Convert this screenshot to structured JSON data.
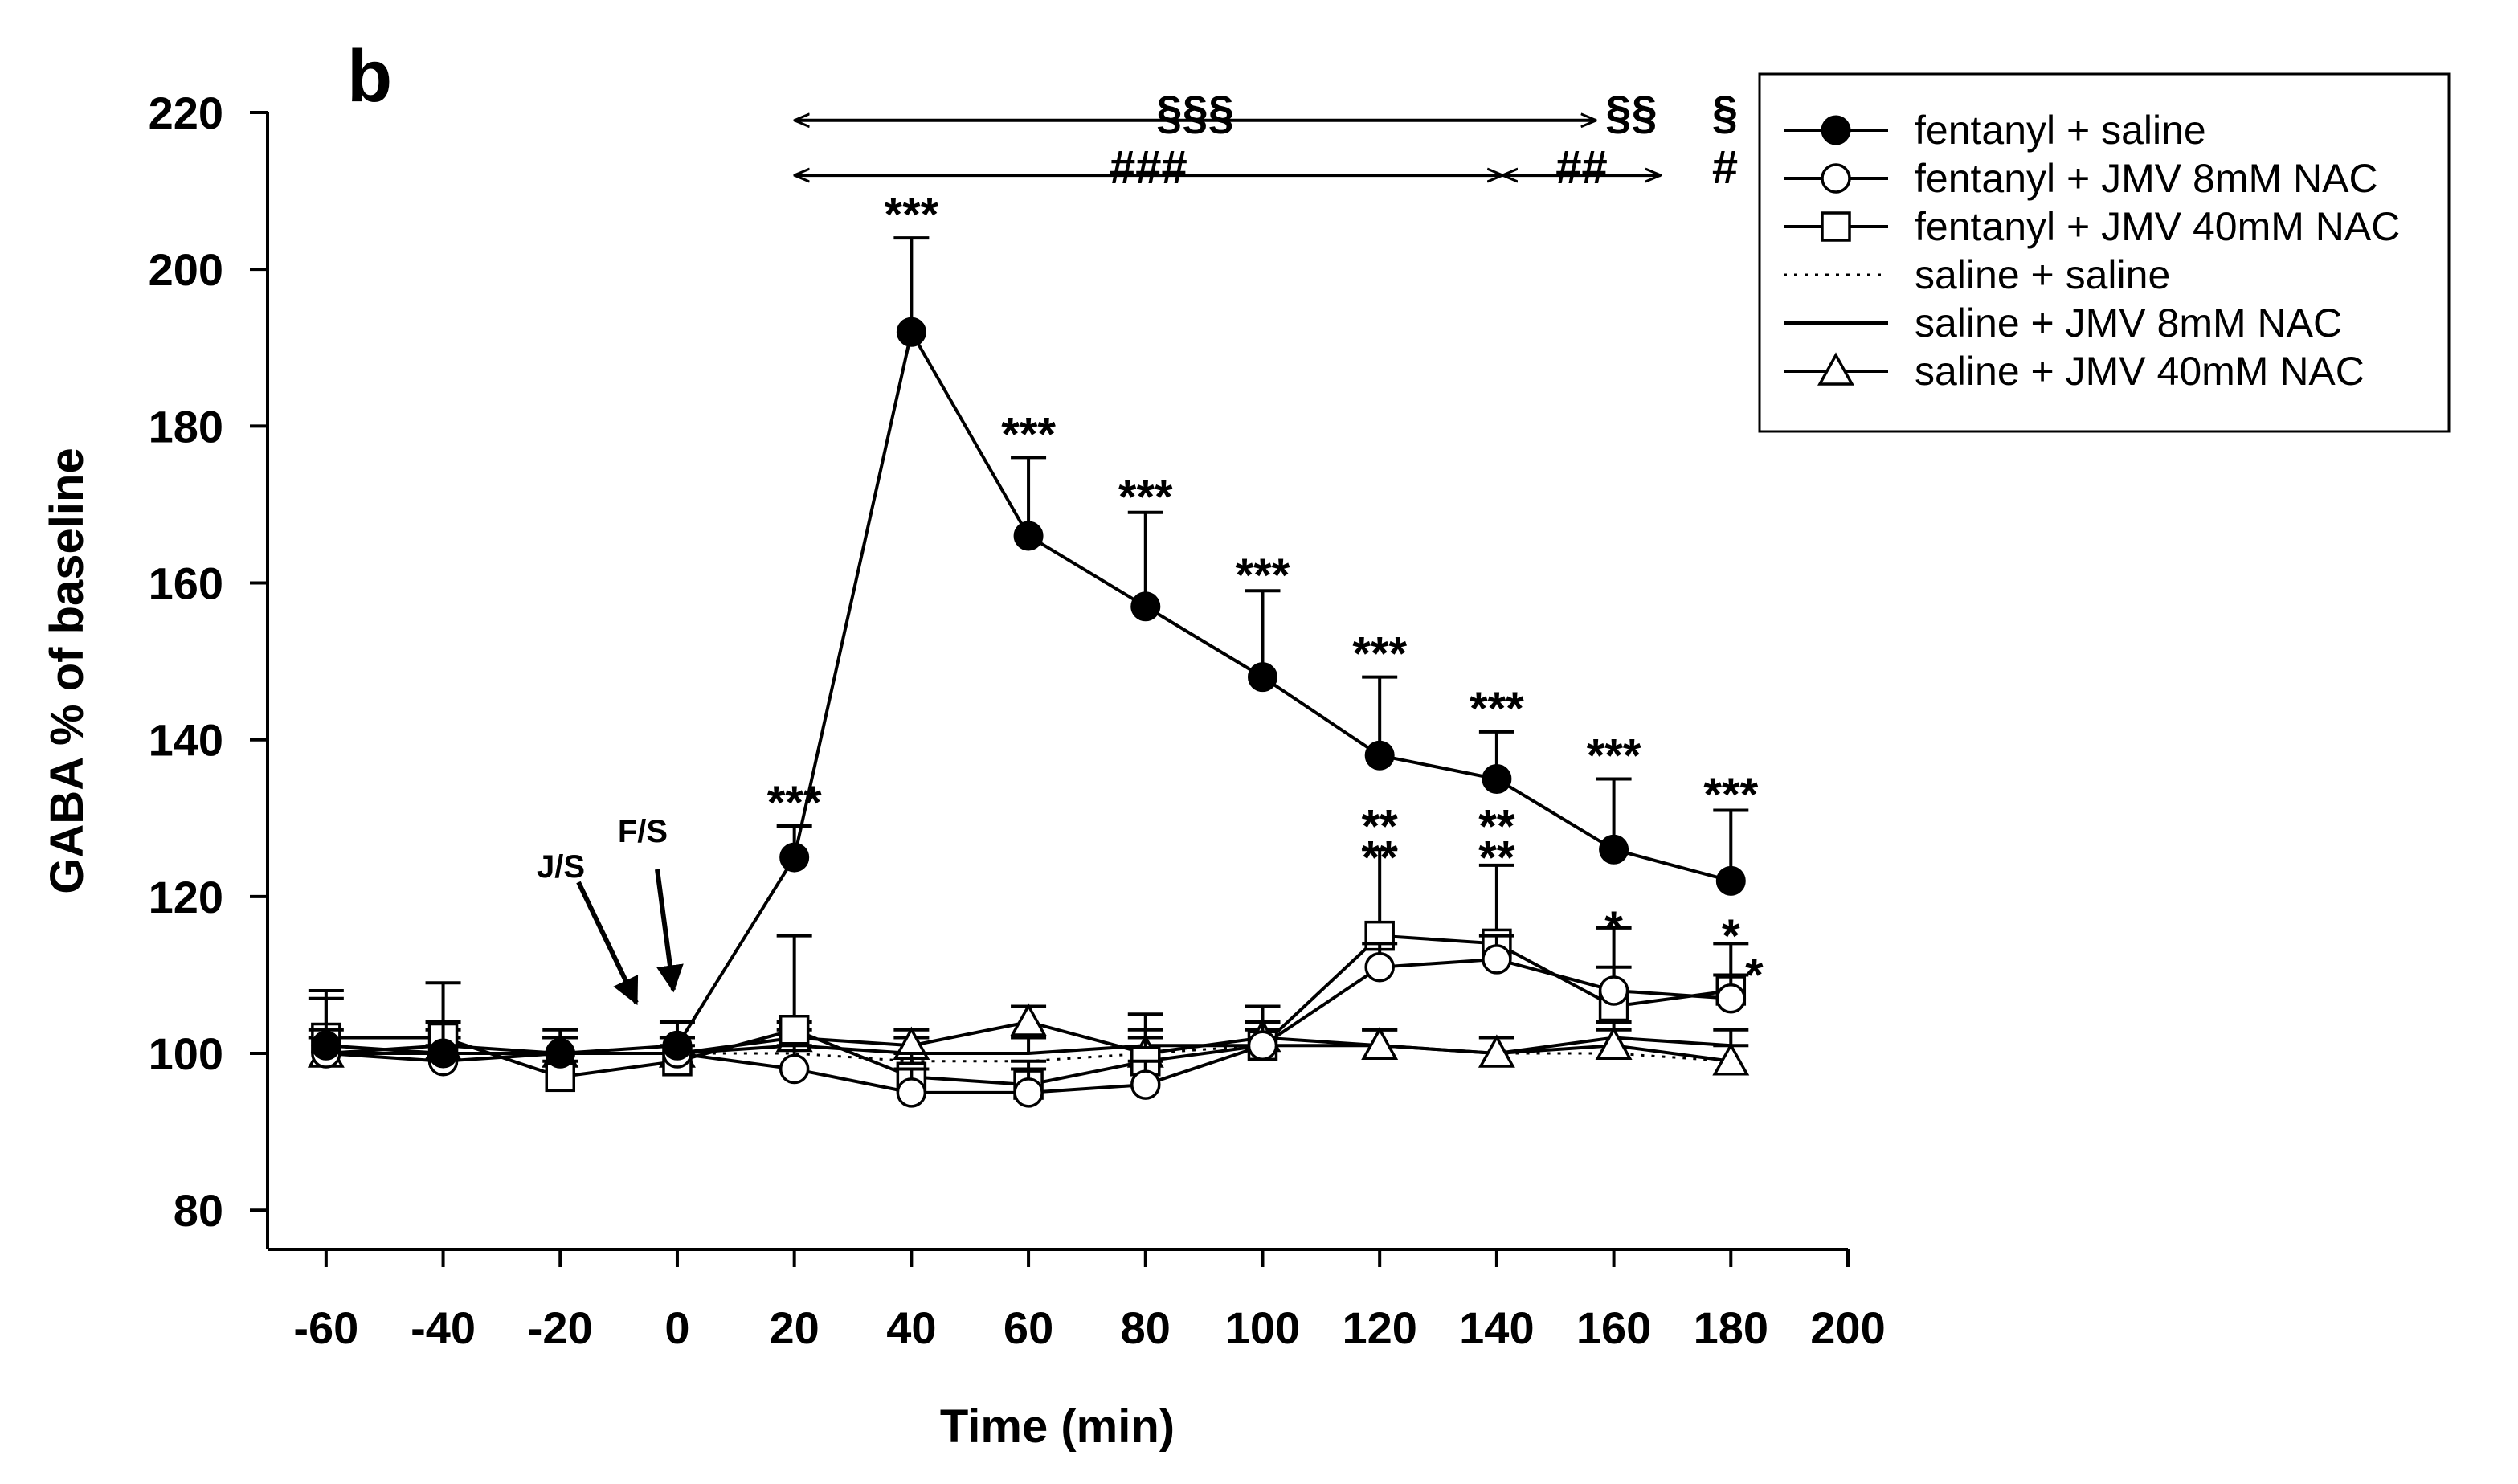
{
  "chart_data": {
    "type": "line",
    "panel_label": "b",
    "title": "",
    "xlabel": "Time (min)",
    "ylabel": "GABA % of baseline",
    "xlim": [
      -70,
      200
    ],
    "ylim": [
      75,
      220
    ],
    "xticks": [
      -60,
      -40,
      -20,
      0,
      20,
      40,
      60,
      80,
      100,
      120,
      140,
      160,
      180,
      200
    ],
    "yticks": [
      80,
      100,
      120,
      140,
      160,
      180,
      200,
      220
    ],
    "x": [
      -60,
      -40,
      -20,
      0,
      20,
      40,
      60,
      80,
      100,
      120,
      140,
      160,
      180
    ],
    "series": [
      {
        "name": "fentanyl + saline",
        "marker": "filled-circle",
        "line": "solid",
        "values": [
          101,
          100,
          100,
          101,
          125,
          192,
          166,
          157,
          148,
          138,
          135,
          126,
          122
        ],
        "errors": [
          6,
          4,
          3,
          3,
          4,
          12,
          10,
          12,
          11,
          10,
          6,
          9,
          9
        ]
      },
      {
        "name": "fentanyl + JMV 8mM NAC",
        "marker": "open-circle",
        "line": "solid",
        "values": [
          100,
          99,
          100,
          100,
          98,
          95,
          95,
          96,
          101,
          111,
          112,
          108,
          107
        ],
        "errors": [
          3,
          2,
          2,
          2,
          3,
          3,
          3,
          3,
          3,
          3,
          3,
          3,
          3
        ]
      },
      {
        "name": "fentanyl + JMV 40mM NAC",
        "marker": "open-square",
        "line": "solid",
        "values": [
          102,
          102,
          97,
          99,
          103,
          97,
          96,
          99,
          101,
          115,
          114,
          106,
          108
        ],
        "errors": [
          6,
          7,
          2,
          2,
          12,
          3,
          3,
          6,
          5,
          11,
          10,
          10,
          6
        ]
      },
      {
        "name": "saline + saline",
        "marker": "none",
        "line": "dotted",
        "values": [
          100,
          100,
          100,
          100,
          100,
          99,
          99,
          100,
          101,
          101,
          100,
          100,
          99
        ],
        "errors": [
          0,
          0,
          0,
          0,
          0,
          0,
          0,
          0,
          0,
          0,
          0,
          0,
          0
        ]
      },
      {
        "name": "saline + JMV 8mM NAC",
        "marker": "none",
        "line": "solid",
        "values": [
          100,
          100,
          100,
          100,
          101,
          100,
          100,
          101,
          101,
          101,
          100,
          102,
          101
        ],
        "errors": [
          2,
          2,
          2,
          2,
          2,
          2,
          2,
          2,
          2,
          2,
          2,
          2,
          2
        ]
      },
      {
        "name": "saline + JMV 40mM NAC",
        "marker": "open-triangle",
        "line": "solid",
        "values": [
          100,
          101,
          100,
          100,
          102,
          101,
          104,
          100,
          102,
          101,
          100,
          101,
          99
        ],
        "errors": [
          2,
          2,
          2,
          2,
          2,
          2,
          2,
          2,
          2,
          2,
          2,
          2,
          2
        ]
      }
    ],
    "annotations": [
      {
        "text": "***",
        "x": 20,
        "y": 133
      },
      {
        "text": "***",
        "x": 40,
        "y": 208
      },
      {
        "text": "***",
        "x": 60,
        "y": 180
      },
      {
        "text": "***",
        "x": 80,
        "y": 172
      },
      {
        "text": "***",
        "x": 100,
        "y": 162
      },
      {
        "text": "***",
        "x": 120,
        "y": 152
      },
      {
        "text": "***",
        "x": 140,
        "y": 145
      },
      {
        "text": "***",
        "x": 160,
        "y": 139
      },
      {
        "text": "***",
        "x": 180,
        "y": 134
      },
      {
        "text": "**",
        "x": 120,
        "y": 130
      },
      {
        "text": "**",
        "x": 120,
        "y": 126
      },
      {
        "text": "**",
        "x": 140,
        "y": 130
      },
      {
        "text": "**",
        "x": 140,
        "y": 126
      },
      {
        "text": "*",
        "x": 160,
        "y": 117
      },
      {
        "text": "*",
        "x": 180,
        "y": 116
      },
      {
        "text": "*",
        "x": 184,
        "y": 111
      }
    ],
    "event_markers": [
      {
        "label": "J/S",
        "x": -5
      },
      {
        "label": "F/S",
        "x": 0
      }
    ],
    "significance_brackets": [
      {
        "label": "§§§",
        "x_from": 20,
        "x_to": 157,
        "y": 219
      },
      {
        "label": "§§",
        "x": 163,
        "y": 219
      },
      {
        "label": "§",
        "x": 179,
        "y": 219
      },
      {
        "label": "###",
        "x_from": 20,
        "x_to": 141,
        "y": 212
      },
      {
        "label": "##",
        "x_from": 141,
        "x_to": 168,
        "y": 212
      },
      {
        "label": "#",
        "x": 179,
        "y": 212
      }
    ],
    "legend_position": "top-right"
  }
}
